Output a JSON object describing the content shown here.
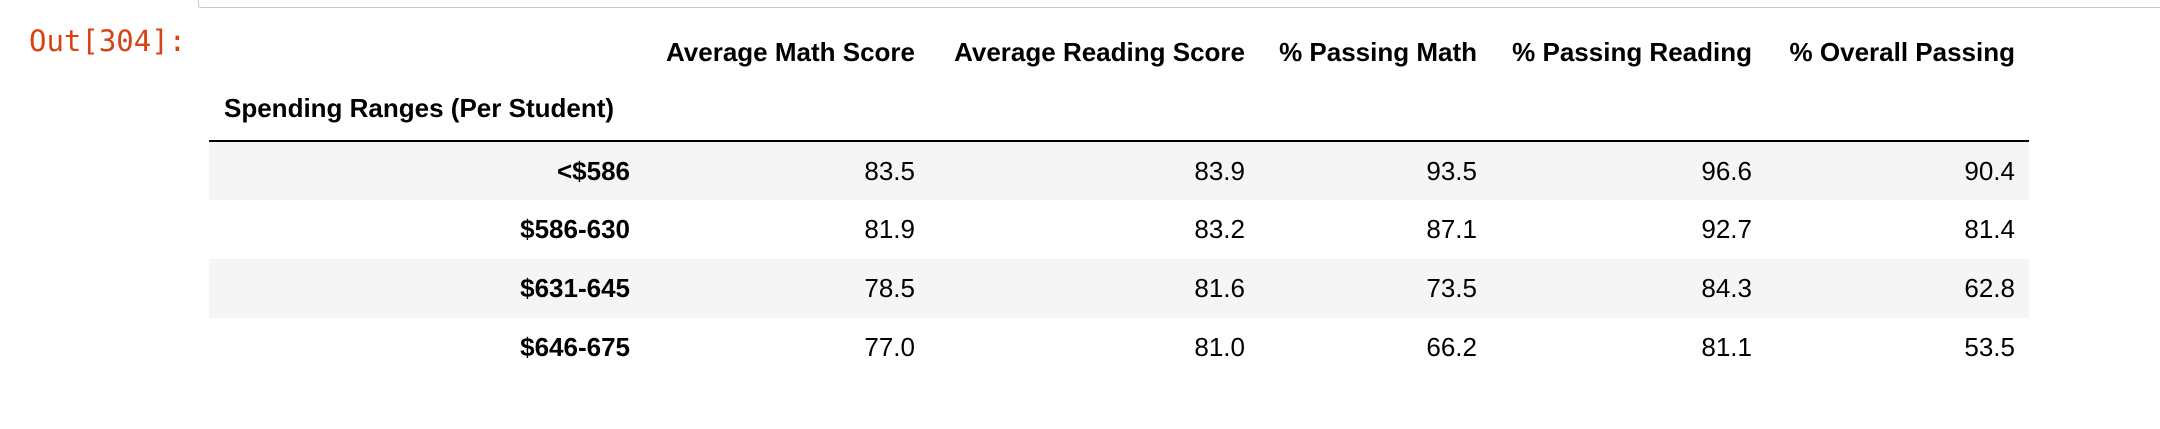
{
  "prompt": "Out[304]:",
  "table": {
    "columns": [
      "Average Math Score",
      "Average Reading Score",
      "% Passing Math",
      "% Passing Reading",
      "% Overall Passing"
    ],
    "index_name": "Spending Ranges (Per Student)",
    "rows": [
      {
        "index": "<$586",
        "values": [
          "83.5",
          "83.9",
          "93.5",
          "96.6",
          "90.4"
        ]
      },
      {
        "index": "$586-630",
        "values": [
          "81.9",
          "83.2",
          "87.1",
          "92.7",
          "81.4"
        ]
      },
      {
        "index": "$631-645",
        "values": [
          "78.5",
          "81.6",
          "73.5",
          "84.3",
          "62.8"
        ]
      },
      {
        "index": "$646-675",
        "values": [
          "77.0",
          "81.0",
          "66.2",
          "81.1",
          "53.5"
        ]
      }
    ]
  }
}
